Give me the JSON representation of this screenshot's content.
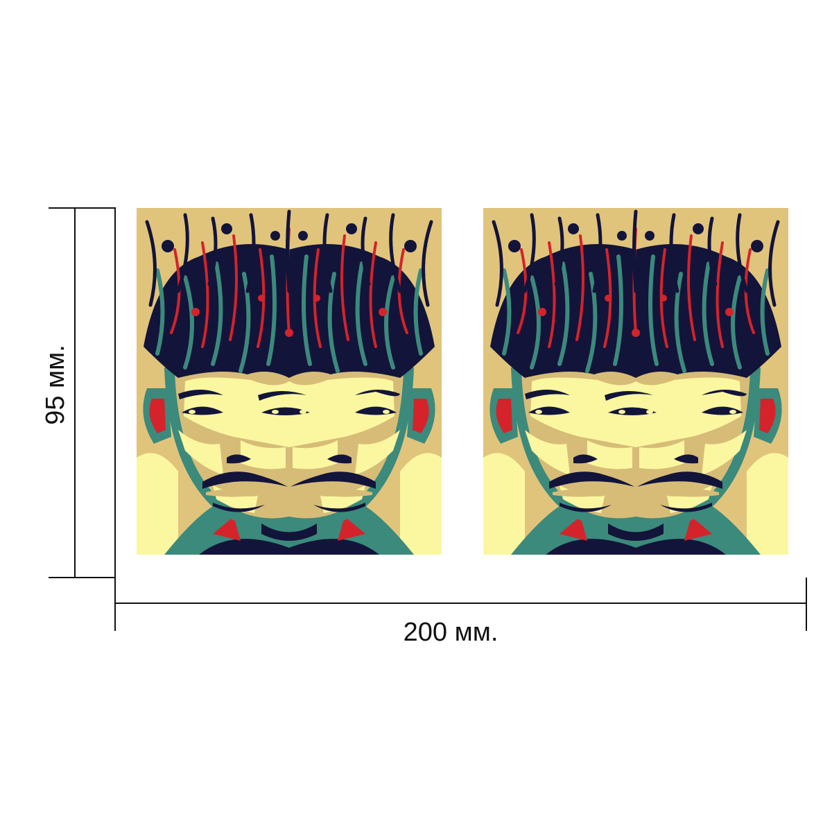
{
  "dimensions": {
    "width_label": "200 мм.",
    "height_label": "95 мм."
  },
  "artwork": {
    "panel_count": 2,
    "palette": {
      "background": "#e0c47c",
      "navy": "#13143a",
      "teal": "#3b8a7c",
      "red": "#d4232a",
      "tan": "#d7bc78",
      "pale_yellow": "#fbf7a0"
    }
  },
  "lines": {
    "color": "#111111"
  }
}
